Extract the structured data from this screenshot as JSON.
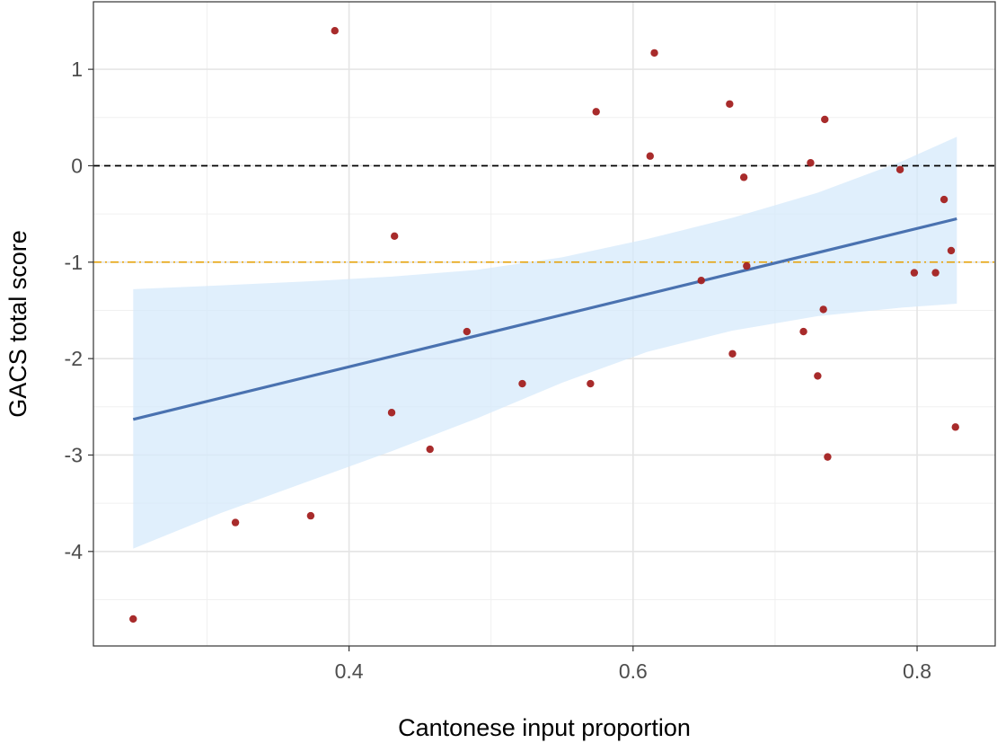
{
  "chart_data": {
    "type": "scatter",
    "xlabel": "Cantonese input proportion",
    "ylabel": "GACS total score",
    "xlim": [
      0.22,
      0.855
    ],
    "ylim": [
      -4.98,
      1.7
    ],
    "x_ticks": [
      0.4,
      0.6,
      0.8
    ],
    "x_tick_labels": [
      "0.4",
      "0.6",
      "0.8"
    ],
    "y_ticks": [
      1,
      0,
      -1,
      -2,
      -3,
      -4
    ],
    "y_tick_labels": [
      "1",
      "0",
      "-1",
      "-2",
      "-3",
      "-4"
    ],
    "x_minor_gridlines": [
      0.3,
      0.5,
      0.7
    ],
    "y_minor_gridlines": [
      0.5,
      -0.5,
      -1.5,
      -2.5,
      -3.5,
      -4.5
    ],
    "grid": true,
    "reference_lines": [
      {
        "y": 0,
        "style": "dashed",
        "color": "#000000"
      },
      {
        "y": -1,
        "style": "dashdot",
        "color": "#e69f00"
      }
    ],
    "fit_line": {
      "x": [
        0.248,
        0.828
      ],
      "y": [
        -2.63,
        -0.55
      ],
      "color": "#4a72b0"
    },
    "confidence_band": {
      "color": "#d6e9fb",
      "x": [
        0.248,
        0.31,
        0.37,
        0.43,
        0.49,
        0.55,
        0.61,
        0.67,
        0.73,
        0.79,
        0.828
      ],
      "lower": [
        -3.97,
        -3.6,
        -3.28,
        -2.96,
        -2.62,
        -2.25,
        -1.93,
        -1.71,
        -1.56,
        -1.47,
        -1.43
      ],
      "upper": [
        -1.28,
        -1.24,
        -1.2,
        -1.15,
        -1.08,
        -0.95,
        -0.76,
        -0.54,
        -0.28,
        0.05,
        0.3
      ]
    },
    "point_color": "#a32020",
    "points": [
      {
        "x": 0.248,
        "y": -4.7
      },
      {
        "x": 0.32,
        "y": -3.7
      },
      {
        "x": 0.373,
        "y": -3.63
      },
      {
        "x": 0.39,
        "y": 1.4
      },
      {
        "x": 0.43,
        "y": -2.56
      },
      {
        "x": 0.432,
        "y": -0.73
      },
      {
        "x": 0.457,
        "y": -2.94
      },
      {
        "x": 0.483,
        "y": -1.72
      },
      {
        "x": 0.522,
        "y": -2.26
      },
      {
        "x": 0.57,
        "y": -2.26
      },
      {
        "x": 0.574,
        "y": 0.56
      },
      {
        "x": 0.612,
        "y": 0.1
      },
      {
        "x": 0.615,
        "y": 1.17
      },
      {
        "x": 0.648,
        "y": -1.19
      },
      {
        "x": 0.668,
        "y": 0.64
      },
      {
        "x": 0.67,
        "y": -1.95
      },
      {
        "x": 0.678,
        "y": -0.12
      },
      {
        "x": 0.68,
        "y": -1.04
      },
      {
        "x": 0.72,
        "y": -1.72
      },
      {
        "x": 0.725,
        "y": 0.03
      },
      {
        "x": 0.73,
        "y": -2.18
      },
      {
        "x": 0.734,
        "y": -1.49
      },
      {
        "x": 0.735,
        "y": 0.48
      },
      {
        "x": 0.737,
        "y": -3.02
      },
      {
        "x": 0.788,
        "y": -0.04
      },
      {
        "x": 0.798,
        "y": -1.11
      },
      {
        "x": 0.813,
        "y": -1.11
      },
      {
        "x": 0.819,
        "y": -0.35
      },
      {
        "x": 0.824,
        "y": -0.88
      },
      {
        "x": 0.827,
        "y": -2.71
      }
    ]
  }
}
